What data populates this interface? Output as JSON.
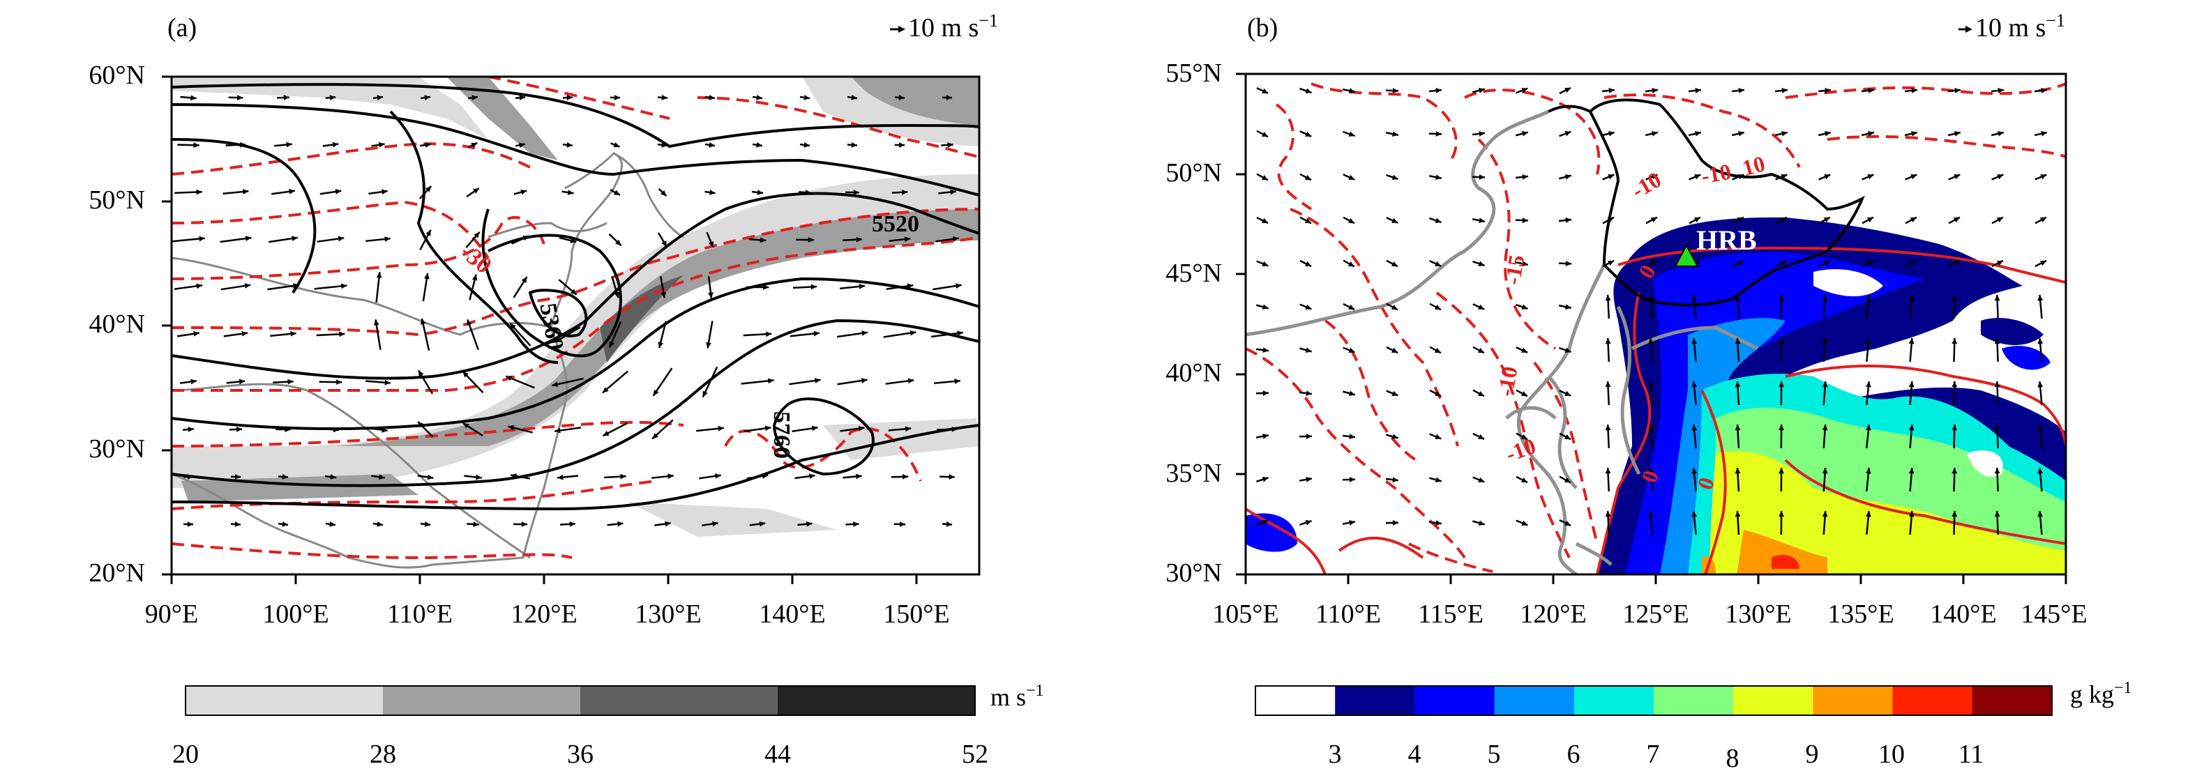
{
  "panel_a": {
    "label": "(a)",
    "ref_vector": "10 m s",
    "ref_vector_exp": "−1",
    "lat_ticks": [
      "20°N",
      "30°N",
      "40°N",
      "50°N",
      "60°N"
    ],
    "lon_ticks": [
      "90°E",
      "100°E",
      "110°E",
      "120°E",
      "130°E",
      "140°E",
      "150°E"
    ],
    "contour_labels": [
      "5520",
      "5360",
      "5760",
      "-30"
    ],
    "colorbar": {
      "unit": "m s",
      "unit_exp": "−1",
      "ticks": [
        "20",
        "28",
        "36",
        "44",
        "52"
      ],
      "colors": [
        "#dcdcdc",
        "#9f9f9f",
        "#5f5f5f",
        "#222222"
      ]
    }
  },
  "panel_b": {
    "label": "(b)",
    "ref_vector": "10 m s",
    "ref_vector_exp": "−1",
    "lat_ticks": [
      "30°N",
      "35°N",
      "40°N",
      "45°N",
      "50°N",
      "55°N"
    ],
    "lon_ticks": [
      "105°E",
      "110°E",
      "115°E",
      "120°E",
      "125°E",
      "130°E",
      "135°E",
      "140°E",
      "145°E"
    ],
    "site_label": "HRB",
    "contour_labels": [
      "-10",
      "-10",
      "-15",
      "10",
      "-10",
      "0",
      "0",
      "0",
      "-10"
    ],
    "colorbar": {
      "unit": "g kg",
      "unit_exp": "−1",
      "ticks": [
        "3",
        "4",
        "5",
        "6",
        "7",
        "8",
        "9",
        "10",
        "11"
      ],
      "colors": [
        "#ffffff",
        "#00008b",
        "#0000ff",
        "#0090ff",
        "#00eedd",
        "#80ff80",
        "#e6ff1a",
        "#ff9900",
        "#ff2200",
        "#8b0000"
      ]
    }
  }
}
